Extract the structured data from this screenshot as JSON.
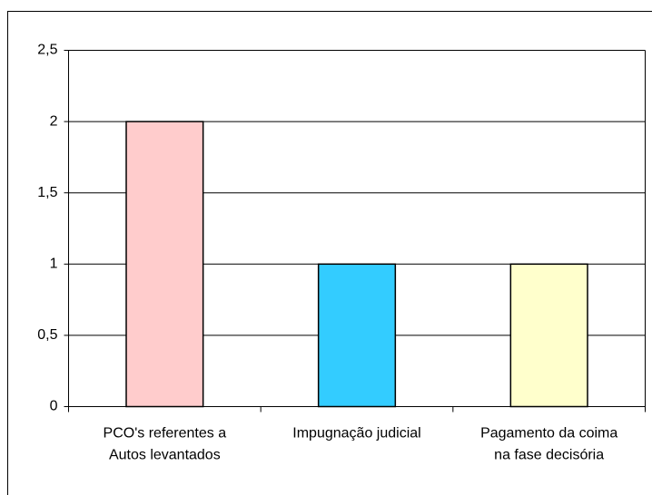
{
  "chart_data": {
    "type": "bar",
    "categories": [
      [
        "PCO's referentes a",
        "Autos levantados"
      ],
      [
        "Impugnação judicial"
      ],
      [
        "Pagamento da coima",
        "na fase decisória"
      ]
    ],
    "values": [
      2,
      1,
      1
    ],
    "colors": [
      "#ffcccc",
      "#33ccff",
      "#ffffcc"
    ],
    "ylim": [
      0,
      2.5
    ],
    "yticks": [
      0,
      {
        "value": 0.5,
        "label": "0,5"
      },
      1,
      {
        "value": 1.5,
        "label": "1,5"
      },
      2,
      {
        "value": 2.5,
        "label": "2,5"
      }
    ],
    "grid": true
  }
}
